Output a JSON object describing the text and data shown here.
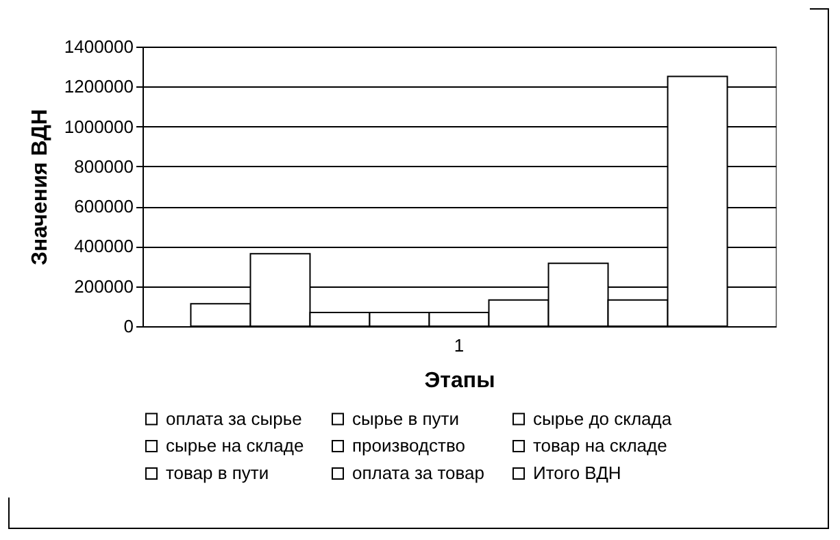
{
  "chart_data": {
    "type": "bar",
    "xlabel": "Этапы",
    "ylabel": "Значения ВДН",
    "categories": [
      "1"
    ],
    "series": [
      {
        "name": "оплата за сырье",
        "color": "#ffffff",
        "values": [
          112000
        ]
      },
      {
        "name": "сырье в пути",
        "color": "#ffffff",
        "values": [
          363000
        ]
      },
      {
        "name": "сырье до склада",
        "color": "#ffffff",
        "values": [
          69000
        ]
      },
      {
        "name": "сырье на складе",
        "color": "#ffffff",
        "values": [
          69000
        ]
      },
      {
        "name": "производство",
        "color": "#ffffff",
        "values": [
          69000
        ]
      },
      {
        "name": "товар на складе",
        "color": "#ffffff",
        "values": [
          131000
        ]
      },
      {
        "name": "товар в пути",
        "color": "#ffffff",
        "values": [
          315000
        ]
      },
      {
        "name": "оплата за товар",
        "color": "#ffffff",
        "values": [
          131000
        ]
      },
      {
        "name": "Итого ВДН",
        "color": "#ffffff",
        "values": [
          1251000
        ]
      }
    ],
    "ylim": [
      0,
      1400000
    ],
    "yticks": [
      0,
      200000,
      400000,
      600000,
      800000,
      1000000,
      1200000,
      1400000
    ],
    "grid": "y",
    "legend": "bottom"
  }
}
